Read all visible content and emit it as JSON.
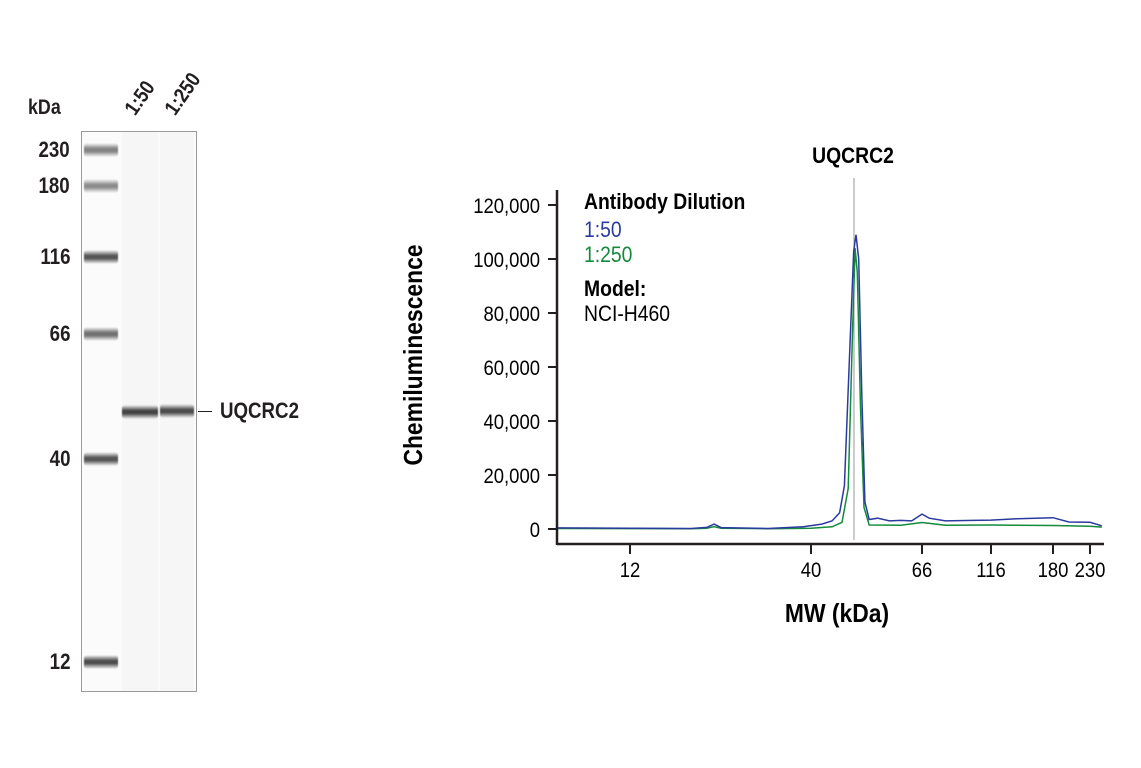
{
  "blot": {
    "unit_label": "kDa",
    "lanes": [
      "1:50",
      "1:250"
    ],
    "ladder": [
      {
        "label": "230",
        "mw": 230,
        "intensity": 0.45
      },
      {
        "label": "180",
        "mw": 180,
        "intensity": 0.4
      },
      {
        "label": "116",
        "mw": 116,
        "intensity": 0.7
      },
      {
        "label": "66",
        "mw": 66,
        "intensity": 0.55
      },
      {
        "label": "40",
        "mw": 40,
        "intensity": 0.7
      },
      {
        "label": "12",
        "mw": 12,
        "intensity": 0.75
      }
    ],
    "target_label": "UQCRC2"
  },
  "chart_data": {
    "type": "line",
    "title": "",
    "peak_label": "UQCRC2",
    "peak_mw": 49,
    "xlabel": "MW (kDa)",
    "ylabel": "Chemiluminescence",
    "x_ticks": [
      12,
      40,
      66,
      116,
      180,
      230
    ],
    "x_tick_labels": [
      "12",
      "40",
      "66",
      "116",
      "180",
      "230"
    ],
    "xlim": [
      7.4,
      260
    ],
    "y_ticks": [
      0,
      20000,
      40000,
      60000,
      80000,
      100000,
      120000
    ],
    "y_tick_labels": [
      "0",
      "20,000",
      "40,000",
      "60,000",
      "80,000",
      "100,000",
      "120,000"
    ],
    "ylim": [
      0,
      120000
    ],
    "grid": false,
    "legend": {
      "title": "Antibody Dilution",
      "model_title": "Model:",
      "model": "NCI-H460",
      "placement": "top-left"
    },
    "series": [
      {
        "name": "1:50",
        "color": "#2b3a9e",
        "points": [
          [
            7.4,
            400
          ],
          [
            12,
            300
          ],
          [
            18,
            200
          ],
          [
            20,
            600
          ],
          [
            21,
            1800
          ],
          [
            22,
            500
          ],
          [
            30,
            200
          ],
          [
            38,
            800
          ],
          [
            42,
            1800
          ],
          [
            44,
            3000
          ],
          [
            45.5,
            6000
          ],
          [
            46.5,
            16000
          ],
          [
            47.5,
            60000
          ],
          [
            48.5,
            103000
          ],
          [
            49,
            109000
          ],
          [
            49.6,
            100000
          ],
          [
            50.3,
            50000
          ],
          [
            51,
            10000
          ],
          [
            52,
            3500
          ],
          [
            54,
            4000
          ],
          [
            57,
            3000
          ],
          [
            60,
            3200
          ],
          [
            63,
            3000
          ],
          [
            66,
            5500
          ],
          [
            70,
            4000
          ],
          [
            80,
            3000
          ],
          [
            100,
            3200
          ],
          [
            116,
            3300
          ],
          [
            140,
            3800
          ],
          [
            180,
            4200
          ],
          [
            200,
            2600
          ],
          [
            230,
            2500
          ],
          [
            255,
            1200
          ]
        ]
      },
      {
        "name": "1:250",
        "color": "#138a3c",
        "points": [
          [
            7.4,
            200
          ],
          [
            12,
            150
          ],
          [
            18,
            100
          ],
          [
            20,
            300
          ],
          [
            21,
            900
          ],
          [
            22,
            300
          ],
          [
            30,
            100
          ],
          [
            40,
            300
          ],
          [
            44,
            800
          ],
          [
            46,
            2500
          ],
          [
            47.3,
            15000
          ],
          [
            48.2,
            70000
          ],
          [
            48.8,
            104000
          ],
          [
            49.3,
            95000
          ],
          [
            50,
            45000
          ],
          [
            50.8,
            8000
          ],
          [
            52,
            1500
          ],
          [
            60,
            1400
          ],
          [
            66,
            2400
          ],
          [
            80,
            1400
          ],
          [
            116,
            1500
          ],
          [
            180,
            1300
          ],
          [
            230,
            1000
          ],
          [
            255,
            700
          ]
        ]
      }
    ]
  }
}
